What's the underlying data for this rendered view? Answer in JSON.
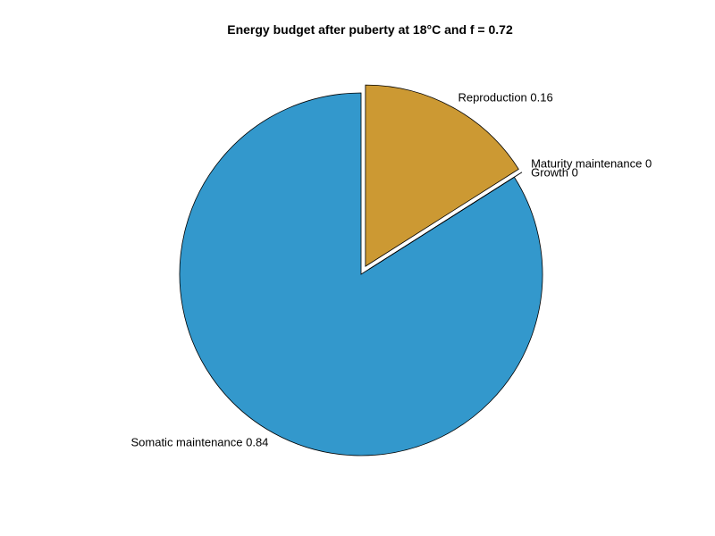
{
  "chart_data": {
    "type": "pie",
    "title": "Energy budget after puberty at 18°C and f = 0.72",
    "slices": [
      {
        "label": "Somatic maintenance 0.84",
        "value": 0.84,
        "color": "#3398CC",
        "exploded": false
      },
      {
        "label": "Maturity maintenance 0",
        "value": 0,
        "color": "#6E8C3C",
        "exploded": true
      },
      {
        "label": "Growth 0",
        "value": 0,
        "color": "#AA3322",
        "exploded": true
      },
      {
        "label": "Reproduction 0.16",
        "value": 0.16,
        "color": "#CC9933",
        "exploded": true
      }
    ]
  }
}
